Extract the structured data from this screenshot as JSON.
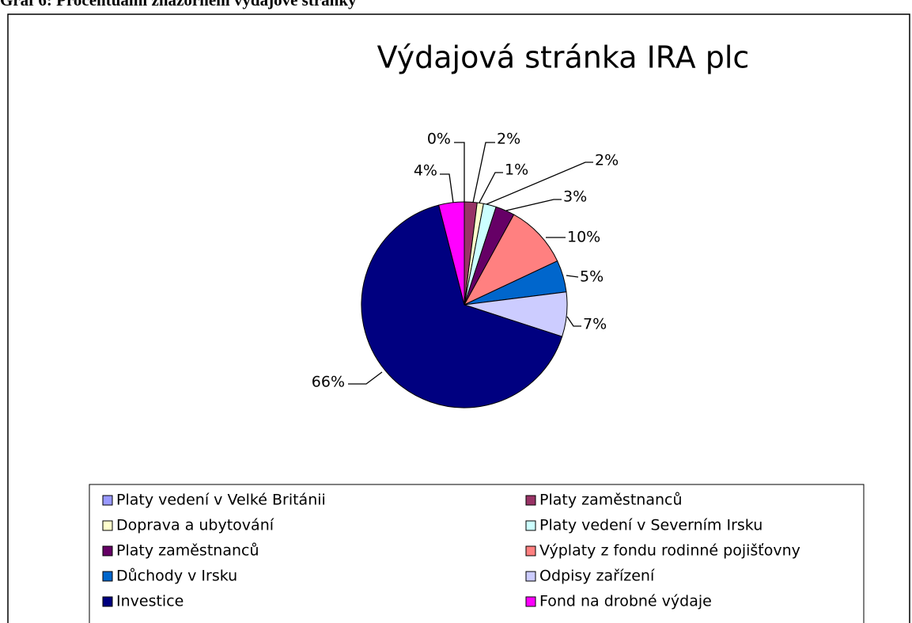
{
  "caption": "Graf 6: Procentuální znázornění výdajové stránky",
  "chart_data": {
    "type": "pie",
    "title": "Výdajová stránka IRA plc",
    "categories": [
      "Platy vedení v Velké Británii",
      "Platy zaměstnanců",
      "Doprava a ubytování",
      "Platy vedení v Severním Irsku",
      "Platy zaměstnanců",
      "Výplaty z fondu rodinné pojišťovny",
      "Důchody v Irsku",
      "Odpisy zařízení",
      "Investice",
      "Fond na drobné výdaje"
    ],
    "values": [
      0,
      2,
      1,
      2,
      3,
      10,
      5,
      7,
      66,
      4
    ],
    "value_labels": [
      "0%",
      "2%",
      "1%",
      "2%",
      "3%",
      "10%",
      "5%",
      "7%",
      "66%",
      "4%"
    ],
    "colors": [
      "#9999ff",
      "#993366",
      "#ffffcc",
      "#ccffff",
      "#660066",
      "#ff8080",
      "#0066cc",
      "#ccccff",
      "#000080",
      "#ff00ff"
    ],
    "legend": "bottom"
  }
}
